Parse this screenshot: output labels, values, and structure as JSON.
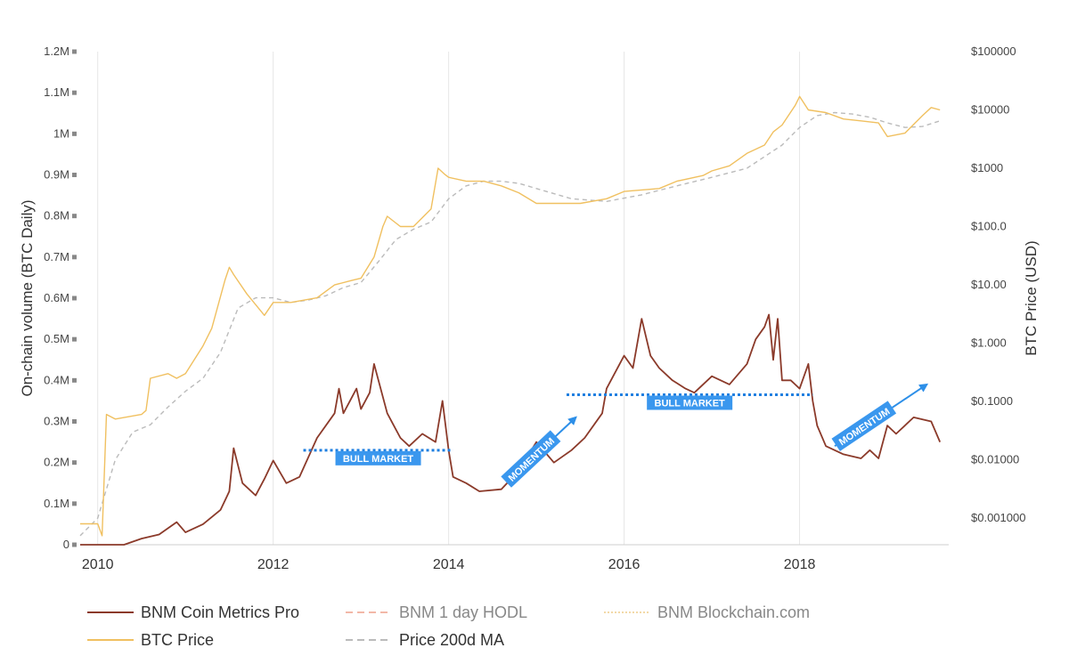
{
  "chart_data": {
    "type": "line",
    "xlabel": "",
    "x_ticks": [
      "2010",
      "2012",
      "2014",
      "2016",
      "2018"
    ],
    "xlim": [
      2009.8,
      2019.7
    ],
    "y_left": {
      "label": "On-chain volume (BTC Daily)",
      "ticks": [
        "0",
        "0.1M",
        "0.2M",
        "0.3M",
        "0.4M",
        "0.5M",
        "0.6M",
        "0.7M",
        "0.8M",
        "0.9M",
        "1M",
        "1.1M",
        "1.2M"
      ],
      "ylim": [
        0,
        1200000
      ]
    },
    "y_right": {
      "label": "BTC Price (USD)",
      "scale": "log",
      "ticks": [
        "$0.001000",
        "$0.01000",
        "$0.1000",
        "$1.000",
        "$10.00",
        "$100.0",
        "$1000",
        "$10000",
        "$100000"
      ],
      "ylim": [
        0.00035,
        100000
      ]
    },
    "grid": {
      "x": true,
      "y": false
    },
    "legend_position": "bottom",
    "series": [
      {
        "name": "BNM Coin Metrics Pro",
        "axis": "left",
        "color": "#8b3a2a",
        "style": "solid",
        "x": [
          2009.8,
          2010.3,
          2010.5,
          2010.7,
          2010.9,
          2011.0,
          2011.2,
          2011.4,
          2011.5,
          2011.55,
          2011.65,
          2011.8,
          2011.9,
          2012.0,
          2012.15,
          2012.3,
          2012.5,
          2012.7,
          2012.75,
          2012.8,
          2012.95,
          2013.0,
          2013.1,
          2013.15,
          2013.3,
          2013.4,
          2013.45,
          2013.55,
          2013.7,
          2013.85,
          2013.93,
          2014.0,
          2014.05,
          2014.2,
          2014.35,
          2014.6,
          2014.8,
          2015.0,
          2015.2,
          2015.4,
          2015.55,
          2015.75,
          2015.8,
          2016.0,
          2016.1,
          2016.2,
          2016.3,
          2016.4,
          2016.55,
          2016.7,
          2016.8,
          2017.0,
          2017.2,
          2017.4,
          2017.5,
          2017.6,
          2017.65,
          2017.7,
          2017.75,
          2017.8,
          2017.9,
          2018.0,
          2018.1,
          2018.15,
          2018.2,
          2018.3,
          2018.5,
          2018.7,
          2018.8,
          2018.9,
          2019.0,
          2019.1,
          2019.3,
          2019.5,
          2019.6
        ],
        "values": [
          0,
          0,
          15000,
          25000,
          55000,
          30000,
          50000,
          85000,
          130000,
          235000,
          150000,
          120000,
          160000,
          205000,
          150000,
          165000,
          260000,
          320000,
          380000,
          320000,
          380000,
          330000,
          370000,
          440000,
          320000,
          280000,
          260000,
          240000,
          270000,
          250000,
          350000,
          230000,
          165000,
          150000,
          130000,
          135000,
          180000,
          250000,
          200000,
          230000,
          260000,
          320000,
          380000,
          460000,
          430000,
          550000,
          460000,
          430000,
          400000,
          380000,
          370000,
          410000,
          390000,
          440000,
          500000,
          530000,
          560000,
          450000,
          550000,
          400000,
          400000,
          380000,
          440000,
          350000,
          290000,
          240000,
          220000,
          210000,
          230000,
          210000,
          290000,
          270000,
          310000,
          300000,
          250000
        ]
      },
      {
        "name": "BNM 1 day HODL",
        "axis": "left",
        "color": "#f2b8a8",
        "style": "dashed",
        "x": [],
        "values": []
      },
      {
        "name": "BNM Blockchain.com",
        "axis": "left",
        "color": "#f2d9a8",
        "style": "dotted",
        "x": [],
        "values": []
      },
      {
        "name": "BTC Price",
        "axis": "right",
        "color": "#f0c060",
        "style": "solid",
        "x": [
          2009.8,
          2010.0,
          2010.05,
          2010.1,
          2010.2,
          2010.5,
          2010.55,
          2010.6,
          2010.8,
          2010.9,
          2011.0,
          2011.2,
          2011.3,
          2011.45,
          2011.5,
          2011.55,
          2011.7,
          2011.9,
          2012.0,
          2012.2,
          2012.5,
          2012.7,
          2012.9,
          2013.0,
          2013.15,
          2013.25,
          2013.3,
          2013.45,
          2013.6,
          2013.8,
          2013.88,
          2013.95,
          2014.0,
          2014.2,
          2014.4,
          2014.6,
          2014.8,
          2015.0,
          2015.2,
          2015.5,
          2015.8,
          2016.0,
          2016.4,
          2016.6,
          2016.9,
          2017.0,
          2017.2,
          2017.4,
          2017.6,
          2017.7,
          2017.8,
          2017.95,
          2018.0,
          2018.1,
          2018.3,
          2018.5,
          2018.7,
          2018.9,
          2019.0,
          2019.2,
          2019.4,
          2019.5,
          2019.6
        ],
        "values": [
          0.0008,
          0.0008,
          0.0005,
          0.06,
          0.05,
          0.06,
          0.07,
          0.25,
          0.3,
          0.25,
          0.3,
          0.9,
          1.8,
          12,
          20,
          15,
          7,
          3,
          5,
          5,
          6,
          10,
          12,
          13,
          30,
          100,
          150,
          100,
          100,
          200,
          1000,
          800,
          700,
          600,
          600,
          500,
          380,
          250,
          250,
          250,
          300,
          400,
          450,
          600,
          750,
          900,
          1100,
          1800,
          2500,
          4200,
          5500,
          12000,
          17000,
          10000,
          9000,
          7000,
          6500,
          6000,
          3500,
          4000,
          8000,
          11000,
          10000
        ]
      },
      {
        "name": "Price 200d MA",
        "axis": "right",
        "color": "#bbbbbb",
        "style": "dashed",
        "x": [
          2009.8,
          2010.0,
          2010.2,
          2010.4,
          2010.6,
          2010.8,
          2011.0,
          2011.2,
          2011.4,
          2011.6,
          2011.8,
          2012.0,
          2012.2,
          2012.4,
          2012.6,
          2012.8,
          2013.0,
          2013.2,
          2013.4,
          2013.6,
          2013.8,
          2014.0,
          2014.2,
          2014.4,
          2014.6,
          2014.8,
          2015.0,
          2015.4,
          2015.8,
          2016.2,
          2016.6,
          2017.0,
          2017.4,
          2017.8,
          2018.0,
          2018.2,
          2018.4,
          2018.6,
          2018.8,
          2019.0,
          2019.2,
          2019.4,
          2019.6
        ],
        "values": [
          0.0005,
          0.001,
          0.01,
          0.03,
          0.04,
          0.08,
          0.15,
          0.25,
          0.7,
          4,
          6,
          6,
          5,
          5.5,
          6.5,
          9,
          11,
          25,
          60,
          90,
          120,
          300,
          500,
          600,
          600,
          550,
          450,
          300,
          270,
          350,
          500,
          700,
          1000,
          2500,
          5000,
          8000,
          9000,
          8500,
          7500,
          6000,
          5000,
          5200,
          6500
        ]
      }
    ],
    "annotations": [
      {
        "type": "dotted-hline",
        "text": "BULL MARKET",
        "axis": "left",
        "x": [
          2012.75,
          2014.05
        ],
        "y": 230000,
        "color": "#1e7fe0"
      },
      {
        "type": "dotted-hline",
        "text": "BULL MARKET",
        "axis": "left",
        "x": [
          2015.75,
          2018.15
        ],
        "y": 365000,
        "color": "#1e7fe0"
      },
      {
        "type": "arrow",
        "text": "MOMENTUM",
        "axis": "left",
        "x": [
          2014.7,
          2015.45
        ],
        "y": [
          160000,
          310000
        ],
        "color": "#2d8fe8"
      },
      {
        "type": "arrow",
        "text": "MOMENTUM",
        "axis": "left",
        "x": [
          2018.4,
          2019.45
        ],
        "y": [
          240000,
          390000
        ],
        "color": "#2d8fe8"
      }
    ]
  }
}
